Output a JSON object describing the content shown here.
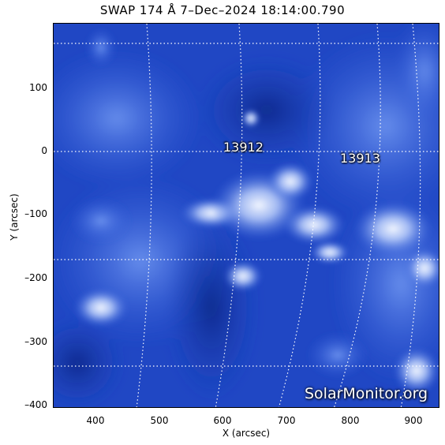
{
  "title": "SWAP 174 Å  7–Dec–2024 18:14:00.790",
  "axes": {
    "xlabel": "X (arcsec)",
    "ylabel": "Y (arcsec)",
    "xticks": [
      "400",
      "500",
      "600",
      "700",
      "800",
      "900"
    ],
    "yticks": [
      "100",
      "0",
      "–100",
      "–200",
      "–300",
      "–400"
    ]
  },
  "regions": [
    {
      "label": "13912"
    },
    {
      "label": "13913"
    }
  ],
  "watermark": "SolarMonitor.org",
  "colors": {
    "background": "#1a3fb8",
    "highlight": "#eef4ff",
    "grid": "#ffffff"
  }
}
